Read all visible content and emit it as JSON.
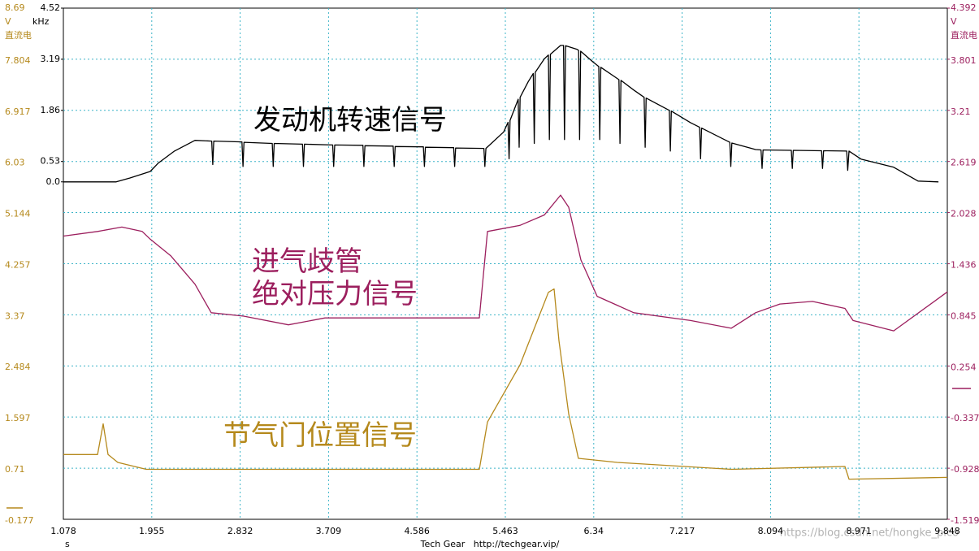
{
  "chart_data": {
    "type": "line",
    "xlabel": "s",
    "xlim": [
      1.078,
      9.848
    ],
    "xticks": [
      1.078,
      1.955,
      2.832,
      3.709,
      4.586,
      5.463,
      6.34,
      7.217,
      8.094,
      8.971,
      9.848
    ],
    "yunit": "V",
    "ydesc": "直流电",
    "ycolor": "#b5891c",
    "ylim": [
      -0.177,
      8.69
    ],
    "yticks": [
      8.69,
      7.804,
      6.917,
      6.03,
      5.144,
      4.257,
      3.37,
      2.484,
      1.597,
      0.71,
      -0.177
    ],
    "y3unit": "kHz",
    "y3color": "#000000",
    "y3lim": [
      -8.78,
      4.52
    ],
    "y3ticks": [
      4.52,
      3.19,
      1.86,
      0.53,
      {
        "value": 0,
        "label": "0.0"
      }
    ],
    "y2unit": "V",
    "y2desc": "直流电",
    "y2color": "#9c1f5e",
    "y2lim": [
      -1.519,
      4.392
    ],
    "y2ticks": [
      4.392,
      3.801,
      3.21,
      2.619,
      2.028,
      1.436,
      0.845,
      0.254,
      -0.337,
      -0.928,
      -1.519
    ],
    "grid": true,
    "footer": "Tech Gear   http://techgear.vip/",
    "watermark": "https://blog.csdn.net/hongke_pico",
    "series": [
      {
        "name": "发动机转速信号",
        "color": "#000000",
        "axis": "y3",
        "x": [
          1.078,
          1.602,
          1.739,
          1.94,
          2.02,
          2.18,
          2.384,
          2.55,
          2.56,
          2.57,
          2.85,
          2.86,
          2.87,
          3.15,
          3.16,
          3.17,
          3.45,
          3.46,
          3.47,
          3.75,
          3.76,
          3.77,
          4.05,
          4.06,
          4.07,
          4.35,
          4.36,
          4.37,
          4.65,
          4.66,
          4.67,
          4.95,
          4.96,
          4.97,
          5.25,
          5.26,
          5.27,
          5.447,
          5.49,
          5.5,
          5.51,
          5.59,
          5.6,
          5.61,
          5.689,
          5.74,
          5.75,
          5.76,
          5.85,
          5.89,
          5.9,
          5.91,
          6.011,
          6.04,
          6.05,
          6.06,
          6.172,
          6.19,
          6.2,
          6.21,
          6.333,
          6.39,
          6.4,
          6.41,
          6.59,
          6.6,
          6.61,
          6.736,
          6.84,
          6.85,
          6.86,
          7.09,
          7.1,
          7.11,
          7.3,
          7.39,
          7.4,
          7.41,
          7.69,
          7.7,
          7.71,
          7.946,
          8.0,
          8.01,
          8.02,
          8.3,
          8.31,
          8.32,
          8.6,
          8.61,
          8.62,
          8.85,
          8.86,
          8.873,
          8.994,
          9.316,
          9.558,
          9.76
        ],
        "values": [
          0,
          0,
          0.1,
          0.27,
          0.49,
          0.8,
          1.08,
          1.06,
          0.45,
          1.06,
          1.04,
          0.4,
          1.03,
          1.0,
          0.4,
          1.0,
          0.98,
          0.4,
          0.98,
          0.96,
          0.4,
          0.96,
          0.95,
          0.4,
          0.94,
          0.93,
          0.4,
          0.92,
          0.91,
          0.4,
          0.9,
          0.89,
          0.4,
          0.88,
          0.87,
          0.4,
          0.87,
          1.3,
          1.55,
          0.6,
          1.6,
          2.15,
          0.9,
          2.2,
          2.6,
          2.82,
          1.0,
          2.85,
          3.2,
          3.3,
          1.1,
          3.32,
          3.55,
          3.55,
          1.1,
          3.54,
          3.45,
          3.42,
          1.1,
          3.4,
          3.12,
          3.0,
          1.1,
          2.98,
          2.66,
          1.0,
          2.64,
          2.39,
          2.2,
          0.9,
          2.18,
          1.86,
          0.8,
          1.84,
          1.54,
          1.42,
          0.6,
          1.4,
          1.03,
          0.4,
          1.01,
          0.84,
          0.83,
          0.35,
          0.83,
          0.82,
          0.35,
          0.82,
          0.81,
          0.35,
          0.81,
          0.8,
          0.3,
          0.8,
          0.59,
          0.38,
          0.02,
          0
        ]
      },
      {
        "name": "进气歧管\n绝对压力信号",
        "color": "#9c1f5e",
        "axis": "y2",
        "x": [
          1.078,
          1.417,
          1.658,
          1.86,
          1.94,
          2.142,
          2.384,
          2.545,
          2.867,
          3.311,
          3.674,
          5.205,
          5.286,
          5.608,
          5.85,
          6.011,
          6.092,
          6.213,
          6.374,
          6.737,
          7.301,
          7.704,
          7.946,
          8.187,
          8.51,
          8.832,
          8.913,
          9.316,
          9.848
        ],
        "values": [
          1.756,
          1.81,
          1.86,
          1.81,
          1.72,
          1.53,
          1.2,
          0.87,
          0.83,
          0.73,
          0.81,
          0.81,
          1.81,
          1.88,
          2.0,
          2.23,
          2.09,
          1.48,
          1.06,
          0.87,
          0.78,
          0.69,
          0.87,
          0.97,
          1.0,
          0.92,
          0.78,
          0.66,
          1.11
        ]
      },
      {
        "name": "节气门位置信号",
        "color": "#b5891c",
        "axis": "y",
        "x": [
          1.078,
          1.417,
          1.473,
          1.521,
          1.618,
          1.9,
          5.205,
          5.286,
          5.608,
          5.89,
          5.947,
          5.995,
          6.092,
          6.188,
          6.575,
          7.704,
          8.832,
          8.873,
          9.848
        ],
        "values": [
          0.947,
          0.947,
          1.48,
          0.947,
          0.81,
          0.69,
          0.69,
          1.51,
          2.5,
          3.76,
          3.82,
          2.92,
          1.65,
          0.88,
          0.81,
          0.69,
          0.74,
          0.52,
          0.55
        ]
      }
    ]
  }
}
